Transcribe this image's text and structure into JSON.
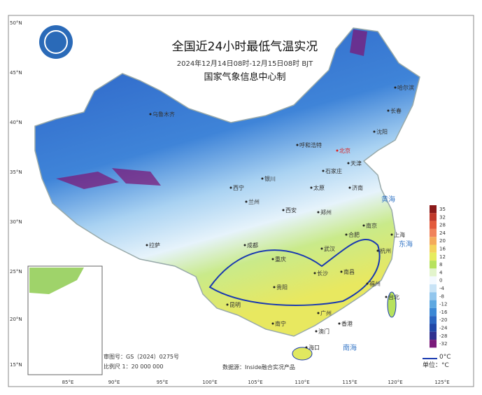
{
  "header": {
    "title": "全国近24小时最低气温实况",
    "subtitle": "2024年12月14日08时-12月15日08时 BJT",
    "agency": "国家气象信息中心制"
  },
  "lat_labels": [
    "50°N",
    "45°N",
    "40°N",
    "35°N",
    "30°N",
    "25°N",
    "20°N",
    "15°N"
  ],
  "lon_labels": [
    "85°E",
    "90°E",
    "95°E",
    "100°E",
    "105°E",
    "110°E",
    "115°E",
    "120°E",
    "125°E"
  ],
  "cities": [
    "哈尔滨",
    "长春",
    "沈阳",
    "呼和浩特",
    "北京",
    "天津",
    "石家庄",
    "太原",
    "济南",
    "郑州",
    "西安",
    "兰州",
    "西宁",
    "银川",
    "乌鲁木齐",
    "拉萨",
    "成都",
    "重庆",
    "武汉",
    "合肥",
    "南京",
    "上海",
    "杭州",
    "长沙",
    "南昌",
    "福州",
    "台北",
    "贵阳",
    "昆明",
    "南宁",
    "广州",
    "香港",
    "澳门",
    "海口"
  ],
  "seas": [
    "黄海",
    "东海",
    "南海"
  ],
  "legend": {
    "items": [
      {
        "value": 35,
        "color": "#8b1a1a"
      },
      {
        "value": 32,
        "color": "#c0392b"
      },
      {
        "value": 28,
        "color": "#e35a3c"
      },
      {
        "value": 24,
        "color": "#f0825a"
      },
      {
        "value": 20,
        "color": "#f4aa5a"
      },
      {
        "value": 16,
        "color": "#f4d35c"
      },
      {
        "value": 12,
        "color": "#e6ec5e"
      },
      {
        "value": 8,
        "color": "#b7e25e"
      },
      {
        "value": 4,
        "color": "#e2f4cc"
      },
      {
        "value": 0,
        "color": "#f3f9ff"
      },
      {
        "value": -4,
        "color": "#c8e3f6"
      },
      {
        "value": -8,
        "color": "#92c6ed"
      },
      {
        "value": -12,
        "color": "#5ea8e1"
      },
      {
        "value": -16,
        "color": "#3c88d5"
      },
      {
        "value": -20,
        "color": "#2b66c1"
      },
      {
        "value": -24,
        "color": "#2148a8"
      },
      {
        "value": -28,
        "color": "#303290"
      },
      {
        "value": -32,
        "color": "#7a1a7a"
      }
    ],
    "zero_line_label": "0°C",
    "unit": "单位：°C"
  },
  "footer": {
    "approval": "审图号：GS（2024）0275号",
    "scale": "比例尺 1：20 000 000",
    "source": "数据源：Inside融合实况产品"
  }
}
